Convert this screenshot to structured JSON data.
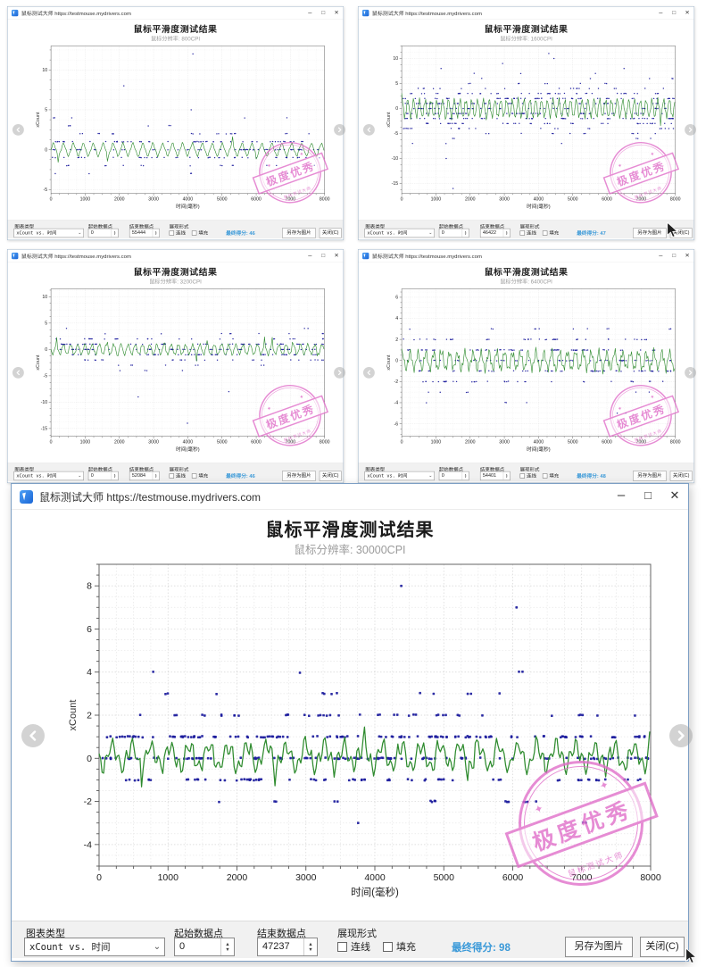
{
  "app": {
    "title": "鼠标测试大师 https://testmouse.mydrivers.com",
    "window_controls": {
      "minimize": "–",
      "maximize": "□",
      "close": "✕"
    }
  },
  "colors": {
    "dot": "#1a1a9c",
    "line": "#2e8b2e",
    "stamp_pink": "#e06cc8",
    "score_blue": "#3a99d8",
    "subtitle_gray": "#9b9b9b",
    "bar_bg": "#f1f1f1"
  },
  "labels": {
    "chart_title": "鼠标平滑度测试结果",
    "resolution_prefix": "鼠标分辨率:",
    "chart_type": "图表类型",
    "start_point": "起始数据点",
    "end_point": "结束数据点",
    "display_form": "展现形式",
    "line_checkbox": "连线",
    "fill_checkbox": "填充",
    "score_prefix": "最终得分:",
    "save_button": "另存为图片",
    "close_button": "关闭(C)",
    "combo_value": "xCount vs. 时间",
    "xlabel": "时间(毫秒)",
    "ylabel": "xCount",
    "stamp_text": "极度优秀",
    "stamp_subtext": "鼠标测试大师",
    "chevron_down": "⌄",
    "spin_up": "▲",
    "spin_down": "▼"
  },
  "windows": [
    {
      "position": "top-left",
      "resolution": "800CPI",
      "start_value": "0",
      "end_value": "55444",
      "score_value": "46"
    },
    {
      "position": "top-right",
      "resolution": "1600CPI",
      "start_value": "0",
      "end_value": "46422",
      "score_value": "47"
    },
    {
      "position": "bottom-left",
      "resolution": "3200CPI",
      "start_value": "0",
      "end_value": "52084",
      "score_value": "46"
    },
    {
      "position": "bottom-right",
      "resolution": "6400CPI",
      "start_value": "0",
      "end_value": "54401",
      "score_value": "48"
    },
    {
      "position": "main",
      "resolution": "30000CPI",
      "start_value": "0",
      "end_value": "47237",
      "score_value": "98"
    }
  ],
  "chart_data": [
    {
      "type": "scatter",
      "cpi": "800CPI",
      "title": "鼠标平滑度测试结果",
      "xlabel": "时间(毫秒)",
      "ylabel": "xCount",
      "xlim": [
        0,
        8000
      ],
      "ylim": [
        -5.5,
        13
      ],
      "xticks": [
        0,
        1000,
        2000,
        3000,
        4000,
        5000,
        6000,
        7000,
        8000
      ],
      "yticks": [
        10,
        5,
        0,
        -5
      ],
      "x_minor": 250,
      "y_minor": 1.25,
      "grid": true,
      "legend": "none",
      "rows": [
        {
          "y": 1,
          "count": 55
        },
        {
          "y": 0,
          "count": 60
        },
        {
          "y": -1,
          "count": 45
        },
        {
          "y": 2,
          "count": 20
        },
        {
          "y": -2,
          "count": 16
        },
        {
          "y": 3,
          "count": 6
        },
        {
          "y": -3,
          "count": 5
        },
        {
          "y": 4,
          "count": 5
        }
      ],
      "outliers": [
        [
          2130,
          8
        ],
        [
          4150,
          12
        ],
        [
          4100,
          5
        ]
      ],
      "line": {
        "base": 0.0,
        "amp1": 0.75,
        "period1": 290,
        "amp2": 0.15,
        "period2": 97,
        "noise": 0.12,
        "step": 30
      },
      "seed": 7
    },
    {
      "type": "scatter",
      "cpi": "1600CPI",
      "title": "鼠标平滑度测试结果",
      "xlabel": "时间(毫秒)",
      "ylabel": "xCount",
      "xlim": [
        0,
        8000
      ],
      "ylim": [
        -17,
        12.5
      ],
      "xticks": [
        0,
        1000,
        2000,
        3000,
        4000,
        5000,
        6000,
        7000,
        8000
      ],
      "yticks": [
        10,
        5,
        0,
        -5,
        -10,
        -15
      ],
      "x_minor": 250,
      "y_minor": 1.25,
      "grid": true,
      "legend": "none",
      "rows": [
        {
          "y": 2,
          "count": 60
        },
        {
          "y": 1,
          "count": 55
        },
        {
          "y": 0,
          "count": 45
        },
        {
          "y": -1,
          "count": 55
        },
        {
          "y": -2,
          "count": 60
        },
        {
          "y": 3,
          "count": 45
        },
        {
          "y": -3,
          "count": 45
        },
        {
          "y": 4,
          "count": 20
        },
        {
          "y": -4,
          "count": 22
        },
        {
          "y": 5,
          "count": 9
        },
        {
          "y": -5,
          "count": 12
        },
        {
          "y": 6,
          "count": 5
        },
        {
          "y": -6,
          "count": 5
        },
        {
          "y": 7,
          "count": 3
        },
        {
          "y": -7,
          "count": 3
        }
      ],
      "outliers": [
        [
          4300,
          11
        ],
        [
          4450,
          10
        ],
        [
          1150,
          8
        ],
        [
          2950,
          9
        ],
        [
          6500,
          8
        ],
        [
          1300,
          -10
        ],
        [
          1500,
          -16
        ]
      ],
      "line": {
        "base": 0.0,
        "amp1": 1.7,
        "period1": 170,
        "amp2": 0.5,
        "period2": 60,
        "noise": 0.3,
        "step": 26
      },
      "seed": 11
    },
    {
      "type": "scatter",
      "cpi": "3200CPI",
      "title": "鼠标平滑度测试结果",
      "xlabel": "时间(毫秒)",
      "ylabel": "xCount",
      "xlim": [
        0,
        8000
      ],
      "ylim": [
        -16.5,
        11.5
      ],
      "xticks": [
        0,
        1000,
        2000,
        3000,
        4000,
        5000,
        6000,
        7000,
        8000
      ],
      "yticks": [
        10,
        5,
        0,
        -5,
        -10,
        -15
      ],
      "x_minor": 250,
      "y_minor": 1.25,
      "grid": true,
      "legend": "none",
      "rows": [
        {
          "y": 1,
          "count": 60
        },
        {
          "y": 0,
          "count": 55
        },
        {
          "y": -1,
          "count": 50
        },
        {
          "y": 2,
          "count": 28
        },
        {
          "y": -2,
          "count": 26
        },
        {
          "y": 3,
          "count": 9
        },
        {
          "y": -3,
          "count": 8
        },
        {
          "y": -4,
          "count": 4
        },
        {
          "y": 4,
          "count": 3
        }
      ],
      "outliers": [
        [
          3990,
          -14
        ],
        [
          2550,
          -9
        ],
        [
          5200,
          -8
        ]
      ],
      "line": {
        "base": 0.0,
        "amp1": 0.95,
        "period1": 210,
        "amp2": 0.25,
        "period2": 75,
        "noise": 0.2,
        "step": 28
      },
      "seed": 13
    },
    {
      "type": "scatter",
      "cpi": "6400CPI",
      "title": "鼠标平滑度测试结果",
      "xlabel": "时间(毫秒)",
      "ylabel": "xCount",
      "xlim": [
        0,
        8000
      ],
      "ylim": [
        -7.2,
        6.8
      ],
      "xticks": [
        0,
        1000,
        2000,
        3000,
        4000,
        5000,
        6000,
        7000,
        8000
      ],
      "yticks": [
        6,
        4,
        2,
        0,
        -2,
        -4,
        -6
      ],
      "x_minor": 250,
      "y_minor": 0.5,
      "grid": true,
      "legend": "none",
      "rows": [
        {
          "y": 1,
          "count": 60
        },
        {
          "y": 0,
          "count": 55
        },
        {
          "y": -1,
          "count": 55
        },
        {
          "y": 2,
          "count": 42
        },
        {
          "y": -2,
          "count": 34
        },
        {
          "y": 3,
          "count": 12
        },
        {
          "y": -3,
          "count": 6
        },
        {
          "y": -4,
          "count": 4
        }
      ],
      "outliers": [
        [
          6300,
          -5
        ],
        [
          6550,
          -5
        ]
      ],
      "line": {
        "base": 0.0,
        "amp1": 0.8,
        "period1": 230,
        "amp2": 0.4,
        "period2": 80,
        "noise": 0.25,
        "step": 28
      },
      "seed": 17
    },
    {
      "type": "scatter",
      "cpi": "30000CPI",
      "title": "鼠标平滑度测试结果",
      "xlabel": "时间(毫秒)",
      "ylabel": "xCount",
      "xlim": [
        0,
        8000
      ],
      "ylim": [
        -5,
        9
      ],
      "xticks": [
        0,
        1000,
        2000,
        3000,
        4000,
        5000,
        6000,
        7000,
        8000
      ],
      "yticks": [
        8,
        6,
        4,
        2,
        0,
        -2,
        -4
      ],
      "x_minor": 250,
      "y_minor": 0.5,
      "grid": true,
      "legend": "none",
      "rows": [
        {
          "y": 1,
          "count": 130
        },
        {
          "y": 0,
          "count": 120
        },
        {
          "y": -1,
          "count": 70
        },
        {
          "y": 2,
          "count": 42
        },
        {
          "y": -2,
          "count": 16
        },
        {
          "y": 3,
          "count": 12
        },
        {
          "y": 4,
          "count": 4
        },
        {
          "y": -3,
          "count": 3
        }
      ],
      "outliers": [
        [
          4383,
          8
        ],
        [
          6055,
          7
        ]
      ],
      "line": {
        "base": 0.1,
        "amp1": 0.5,
        "period1": 280,
        "amp2": 0.35,
        "period2": 96,
        "noise": 0.3,
        "step": 22
      },
      "seed": 42
    }
  ]
}
